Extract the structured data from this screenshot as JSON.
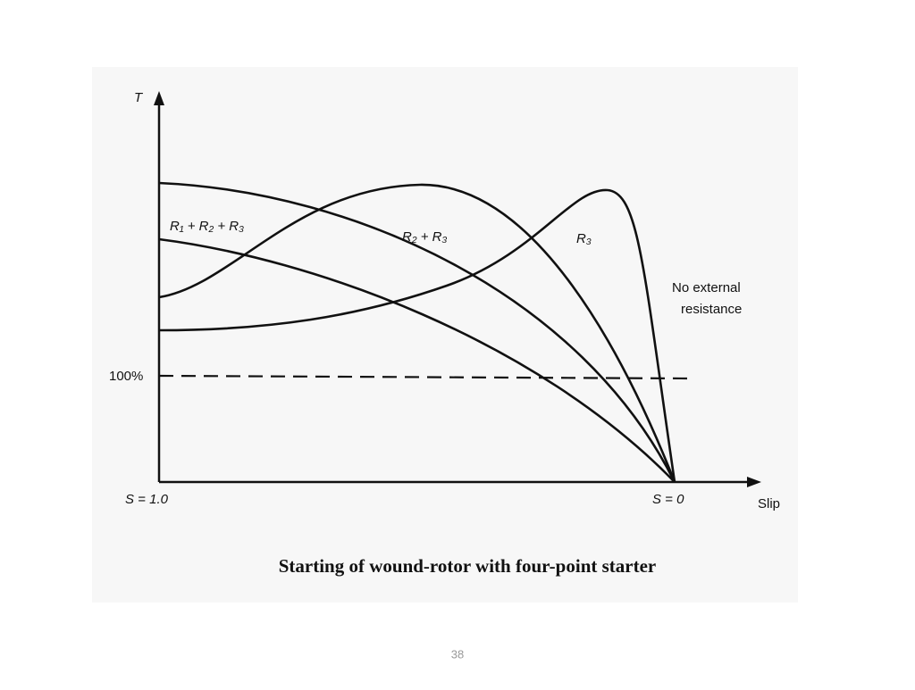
{
  "diagram": {
    "axis_y_label": "T",
    "axis_x_label": "Slip",
    "x_start_label": "S = 1.0",
    "x_end_label": "S = 0",
    "reference_label": "100%",
    "curve_labels": [
      "R₁ + R₂ + R₃",
      "R₂ + R₃",
      "R₃"
    ],
    "no_resistance_label": [
      "No external",
      "resistance"
    ],
    "caption": "Starting of wound-rotor with four-point starter"
  },
  "page_number": "38"
}
